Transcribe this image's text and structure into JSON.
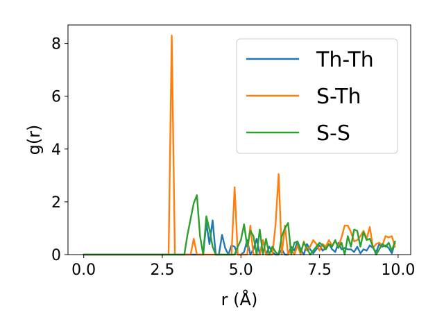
{
  "chart_data": {
    "type": "line",
    "title": "",
    "xlabel": "r (Å)",
    "ylabel": "g(r)",
    "xlim": [
      -0.5,
      10.4
    ],
    "ylim": [
      0,
      8.7
    ],
    "xticks": [
      "0.0",
      "2.5",
      "5.0",
      "7.5",
      "10.0"
    ],
    "xtick_values": [
      0,
      2.5,
      5,
      7.5,
      10
    ],
    "yticks": [
      "0",
      "2",
      "4",
      "6",
      "8"
    ],
    "ytick_values": [
      0,
      2,
      4,
      6,
      8
    ],
    "grid": false,
    "legend_position": "upper-right",
    "series": [
      {
        "name": "Th-Th",
        "color": "#1f77b4",
        "x": [
          0.0,
          3.8,
          3.9,
          4.0,
          4.1,
          4.2,
          4.3,
          4.4,
          4.5,
          4.6,
          4.7,
          4.8,
          4.9,
          5.0,
          5.1,
          5.2,
          5.3,
          5.4,
          5.5,
          5.6,
          5.7,
          5.8,
          5.9,
          6.0,
          6.1,
          6.2,
          6.3,
          6.4,
          6.5,
          6.6,
          6.7,
          6.8,
          6.9,
          7.0,
          7.1,
          7.2,
          7.3,
          7.4,
          7.5,
          7.6,
          7.7,
          7.8,
          7.9,
          8.0,
          8.1,
          8.2,
          8.3,
          8.4,
          8.5,
          8.6,
          8.7,
          8.8,
          8.9,
          9.0,
          9.1,
          9.2,
          9.3,
          9.4,
          9.5,
          9.6,
          9.7,
          9.8,
          9.9
        ],
        "y": [
          0.0,
          0.0,
          1.2,
          0.4,
          1.3,
          0.0,
          0.0,
          0.75,
          0.25,
          0.0,
          0.35,
          0.3,
          0.0,
          0.0,
          0.1,
          0.55,
          0.0,
          0.2,
          0.6,
          0.0,
          0.55,
          0.0,
          0.3,
          0.1,
          0.0,
          0.0,
          0.2,
          0.0,
          0.0,
          0.3,
          0.15,
          0.5,
          0.2,
          0.0,
          0.4,
          0.2,
          0.05,
          0.2,
          0.35,
          0.15,
          0.25,
          0.4,
          0.2,
          0.1,
          0.45,
          0.2,
          0.25,
          0.2,
          0.2,
          0.1,
          0.3,
          0.05,
          0.2,
          0.15,
          0.35,
          0.25,
          0.1,
          0.4,
          0.3,
          0.35,
          0.25,
          0.05,
          0.45
        ]
      },
      {
        "name": "S-Th",
        "color": "#ff7f0e",
        "x": [
          0.0,
          2.7,
          2.8,
          2.9,
          3.4,
          3.5,
          3.6,
          4.7,
          4.8,
          4.9,
          5.2,
          5.3,
          5.4,
          5.6,
          5.7,
          5.8,
          6.0,
          6.1,
          6.2,
          6.3,
          6.4,
          6.5,
          6.6,
          6.7,
          6.8,
          6.9,
          7.0,
          7.1,
          7.2,
          7.3,
          7.4,
          7.5,
          7.6,
          7.7,
          7.8,
          7.9,
          8.0,
          8.1,
          8.2,
          8.3,
          8.4,
          8.5,
          8.6,
          8.7,
          8.8,
          8.9,
          9.0,
          9.1,
          9.2,
          9.3,
          9.4,
          9.5,
          9.6,
          9.7,
          9.8,
          9.9
        ],
        "y": [
          0.0,
          0.0,
          8.3,
          0.0,
          0.0,
          0.6,
          0.0,
          0.0,
          2.55,
          0.0,
          0.0,
          1.1,
          0.0,
          0.0,
          0.55,
          0.0,
          0.0,
          1.1,
          3.05,
          0.0,
          1.1,
          0.0,
          0.2,
          0.0,
          0.35,
          0.0,
          0.5,
          0.15,
          0.3,
          0.55,
          0.4,
          0.15,
          0.4,
          0.3,
          0.55,
          0.35,
          0.5,
          0.3,
          0.65,
          1.1,
          1.1,
          0.85,
          0.5,
          0.55,
          0.7,
          0.9,
          0.6,
          1.05,
          0.25,
          0.4,
          0.45,
          0.35,
          0.7,
          0.65,
          0.7,
          0.3
        ]
      },
      {
        "name": "S-S",
        "color": "#2ca02c",
        "x": [
          0.0,
          3.2,
          3.3,
          3.4,
          3.5,
          3.6,
          3.7,
          3.8,
          3.9,
          4.0,
          4.1,
          4.2,
          4.3,
          4.4,
          4.6,
          4.7,
          4.8,
          4.9,
          5.0,
          5.1,
          5.2,
          5.3,
          5.4,
          5.5,
          5.6,
          5.7,
          5.8,
          5.9,
          6.0,
          6.1,
          6.2,
          6.3,
          6.4,
          6.5,
          6.6,
          6.7,
          6.8,
          6.9,
          7.0,
          7.1,
          7.2,
          7.3,
          7.4,
          7.5,
          7.6,
          7.7,
          7.8,
          7.9,
          8.0,
          8.1,
          8.2,
          8.3,
          8.4,
          8.5,
          8.6,
          8.7,
          8.8,
          8.9,
          9.0,
          9.1,
          9.2,
          9.3,
          9.4,
          9.5,
          9.6,
          9.7,
          9.8,
          9.9
        ],
        "y": [
          0.0,
          0.0,
          0.75,
          1.35,
          1.95,
          2.25,
          0.7,
          0.0,
          1.45,
          0.95,
          0.3,
          0.0,
          0.0,
          0.0,
          0.0,
          0.0,
          0.0,
          0.3,
          0.55,
          1.15,
          0.3,
          0.9,
          0.7,
          0.0,
          0.95,
          0.0,
          0.6,
          0.0,
          0.3,
          0.1,
          0.0,
          0.7,
          1.0,
          1.2,
          0.0,
          0.45,
          0.5,
          0.1,
          0.45,
          0.25,
          0.0,
          0.15,
          0.3,
          0.45,
          0.35,
          0.2,
          0.4,
          0.3,
          0.55,
          0.25,
          0.45,
          0.0,
          0.7,
          0.3,
          0.95,
          0.9,
          0.3,
          0.85,
          0.55,
          0.6,
          0.3,
          0.0,
          0.2,
          0.4,
          0.3,
          0.45,
          0.15,
          0.5
        ]
      }
    ]
  }
}
